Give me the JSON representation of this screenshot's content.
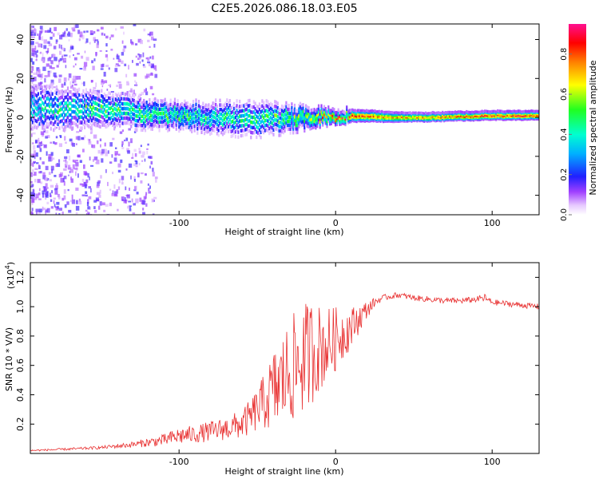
{
  "figure": {
    "title": "C2E5.2026.086.18.03.E05"
  },
  "chart_data": [
    {
      "type": "heatmap",
      "xlabel": "Height of straight line (km)",
      "ylabel": "Frequency (Hz)",
      "xlim": [
        -195,
        130
      ],
      "ylim": [
        -50,
        48
      ],
      "xticks": [
        -100,
        0,
        100
      ],
      "xtick_labels": [
        "-100",
        "0",
        "100"
      ],
      "yticks": [
        -40,
        -20,
        0,
        20,
        40
      ],
      "ytick_labels": [
        "-40",
        "-20",
        "0",
        "20",
        "40"
      ],
      "colorbar": {
        "label": "Normalized spectral amplitude",
        "range": [
          0.0,
          0.95
        ],
        "ticks": [
          0.0,
          0.2,
          0.4,
          0.6,
          0.8
        ],
        "tick_labels": [
          "0.0",
          "0.2",
          "0.4",
          "0.6",
          "0.8"
        ]
      },
      "band": {
        "description_points_x": [
          -195,
          -150,
          -100,
          -50,
          -20,
          0,
          50,
          100,
          130
        ],
        "center_freq": [
          5,
          4,
          1,
          -1,
          0,
          1,
          0,
          1,
          1
        ],
        "half_width": [
          10,
          8,
          6,
          8,
          5,
          3,
          2,
          2,
          2
        ],
        "peak_amplitude": [
          0.45,
          0.5,
          0.5,
          0.45,
          0.6,
          0.85,
          0.75,
          0.85,
          0.85
        ]
      }
    },
    {
      "type": "line",
      "xlabel": "Height of straight line (km)",
      "ylabel": "SNR (10 * V/V)",
      "y_scale_label": "(x10",
      "y_scale_exp": "4",
      "xlim": [
        -195,
        130
      ],
      "ylim": [
        0,
        1.3
      ],
      "xticks": [
        -100,
        0,
        100
      ],
      "xtick_labels": [
        "-100",
        "0",
        "100"
      ],
      "yticks": [
        0.2,
        0.4,
        0.6,
        0.8,
        1.0,
        1.2
      ],
      "ytick_labels": [
        "0.2",
        "0.4",
        "0.6",
        "0.8",
        "1.0",
        "1.2"
      ],
      "series": [
        {
          "name": "SNR",
          "color": "#e83030",
          "x": [
            -195,
            -170,
            -150,
            -130,
            -110,
            -100,
            -90,
            -80,
            -70,
            -60,
            -55,
            -50,
            -45,
            -40,
            -35,
            -30,
            -25,
            -20,
            -15,
            -10,
            -5,
            0,
            5,
            10,
            15,
            20,
            25,
            30,
            35,
            40,
            45,
            50,
            60,
            70,
            80,
            90,
            95,
            100,
            110,
            120,
            130
          ],
          "values": [
            0.02,
            0.03,
            0.04,
            0.06,
            0.09,
            0.12,
            0.13,
            0.15,
            0.17,
            0.2,
            0.24,
            0.3,
            0.36,
            0.42,
            0.48,
            0.55,
            0.6,
            0.65,
            0.7,
            0.72,
            0.74,
            0.78,
            0.82,
            0.86,
            0.92,
            0.98,
            1.03,
            1.06,
            1.07,
            1.08,
            1.07,
            1.06,
            1.05,
            1.04,
            1.04,
            1.05,
            1.06,
            1.03,
            1.02,
            1.01,
            1.0
          ],
          "noise": [
            0.005,
            0.008,
            0.01,
            0.02,
            0.04,
            0.06,
            0.06,
            0.07,
            0.08,
            0.1,
            0.12,
            0.15,
            0.2,
            0.28,
            0.32,
            0.36,
            0.38,
            0.38,
            0.36,
            0.3,
            0.26,
            0.22,
            0.18,
            0.14,
            0.1,
            0.06,
            0.03,
            0.02,
            0.02,
            0.02,
            0.02,
            0.02,
            0.02,
            0.02,
            0.02,
            0.02,
            0.03,
            0.02,
            0.02,
            0.02,
            0.02
          ]
        }
      ]
    }
  ]
}
